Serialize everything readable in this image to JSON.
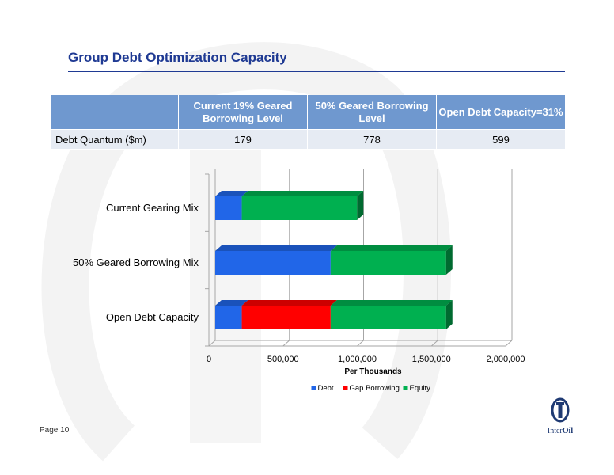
{
  "slide": {
    "title": "Group Debt Optimization Capacity",
    "page_label": "Page 10",
    "logo": {
      "part1": "Inter",
      "part2": "Oil"
    }
  },
  "table": {
    "headers": [
      "",
      "Current 19% Geared Borrowing Level",
      "50% Geared Borrowing Level",
      "Open Debt Capacity=31%"
    ],
    "rows": [
      {
        "label": "Debt Quantum ($m)",
        "values": [
          "179",
          "778",
          "599"
        ]
      }
    ]
  },
  "chart_data": {
    "type": "bar",
    "orientation": "horizontal",
    "stacked": true,
    "categories": [
      "Current Gearing Mix",
      "50% Geared Borrowing Mix",
      "Open Debt Capacity"
    ],
    "series": [
      {
        "name": "Debt",
        "color": "#2166e8",
        "values": [
          179000,
          778000,
          179000
        ]
      },
      {
        "name": "Gap Borrowing",
        "color": "#ff0000",
        "values": [
          0,
          0,
          599000
        ]
      },
      {
        "name": "Equity",
        "color": "#00b050",
        "values": [
          777000,
          778000,
          778000
        ]
      }
    ],
    "xlabel": "Per Thousands",
    "xlim": [
      0,
      2000000
    ],
    "xticks": [
      0,
      500000,
      1000000,
      1500000,
      2000000
    ],
    "xtick_labels": [
      "0",
      "500,000",
      "1,000,000",
      "1,500,000",
      "2,000,000"
    ],
    "grid": true,
    "legend": "bottom"
  }
}
